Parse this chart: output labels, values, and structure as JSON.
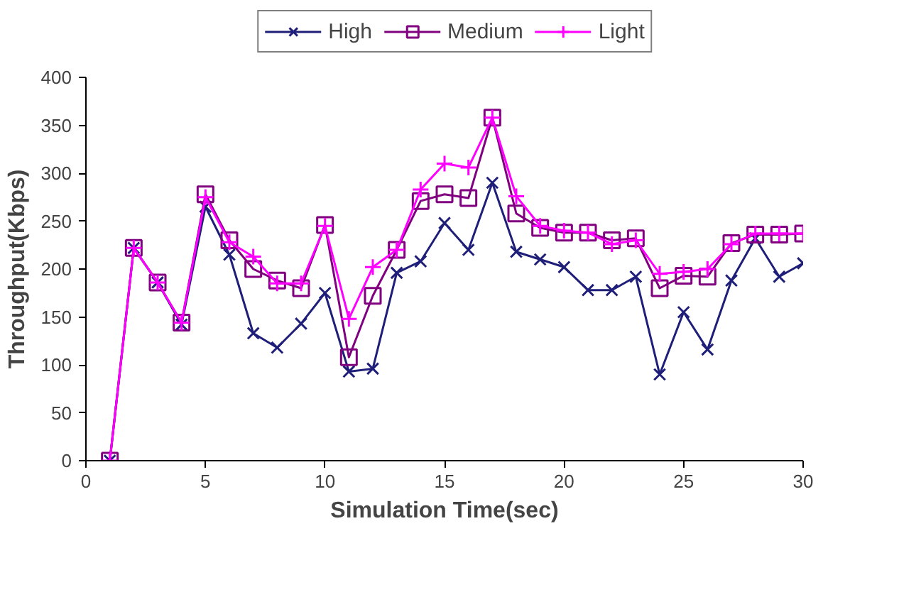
{
  "chart_data": {
    "type": "line",
    "xlabel": "Simulation Time(sec)",
    "ylabel": "Throughput(Kbps)",
    "x": [
      1,
      2,
      3,
      4,
      5,
      6,
      7,
      8,
      9,
      10,
      11,
      12,
      13,
      14,
      15,
      16,
      17,
      18,
      19,
      20,
      21,
      22,
      23,
      24,
      25,
      26,
      27,
      28,
      29,
      30
    ],
    "series": [
      {
        "name": "High",
        "color": "#1f1f7a",
        "marker": "x",
        "values": [
          0,
          222,
          186,
          142,
          265,
          215,
          133,
          118,
          143,
          175,
          93,
          96,
          196,
          208,
          248,
          220,
          290,
          218,
          210,
          202,
          178,
          178,
          192,
          90,
          155,
          116,
          188,
          232,
          192,
          206
        ]
      },
      {
        "name": "Medium",
        "color": "#800080",
        "marker": "square",
        "values": [
          0,
          222,
          186,
          144,
          278,
          230,
          200,
          188,
          180,
          246,
          108,
          172,
          220,
          271,
          278,
          274,
          358,
          258,
          243,
          238,
          238,
          230,
          232,
          180,
          193,
          192,
          227,
          236,
          236,
          237
        ]
      },
      {
        "name": "Light",
        "color": "#ff00ff",
        "marker": "cross",
        "values": [
          0,
          222,
          186,
          144,
          275,
          228,
          213,
          185,
          185,
          245,
          148,
          202,
          220,
          283,
          310,
          306,
          358,
          276,
          245,
          240,
          238,
          226,
          230,
          195,
          197,
          200,
          226,
          237,
          237,
          237
        ]
      }
    ],
    "xlim": [
      0,
      30
    ],
    "xticks": [
      0,
      5,
      10,
      15,
      20,
      25,
      30
    ],
    "ylim": [
      0,
      400
    ],
    "yticks": [
      0,
      50,
      100,
      150,
      200,
      250,
      300,
      350,
      400
    ],
    "grid": false,
    "legend": "top",
    "line_style": "solid"
  }
}
